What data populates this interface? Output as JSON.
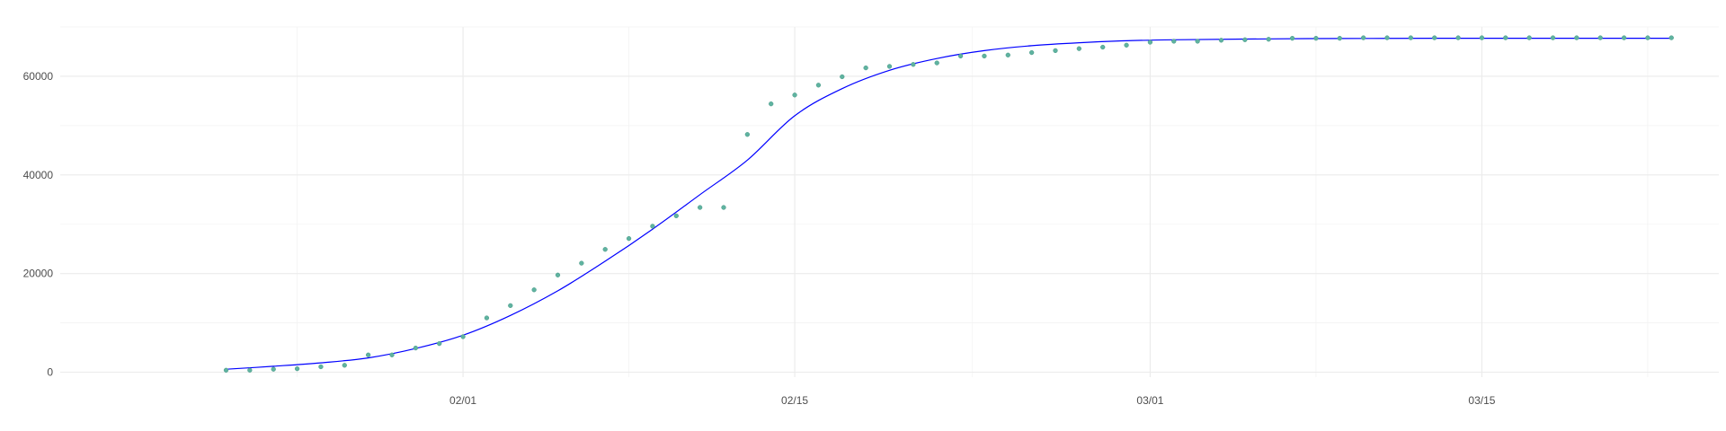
{
  "chart_data": {
    "type": "scatter",
    "title": "",
    "xlabel": "",
    "ylabel": "",
    "x_ticks": [
      "02/01",
      "02/15",
      "03/01",
      "03/15"
    ],
    "y_ticks": [
      0,
      20000,
      40000,
      60000
    ],
    "ylim": [
      -1000,
      70000
    ],
    "xlim": [
      "2020-01-15",
      "2020-03-25"
    ],
    "grid": true,
    "legend": "none",
    "series": [
      {
        "kind": "points",
        "color": "#5fb3a0",
        "dates": [
          "2020-01-22",
          "2020-01-23",
          "2020-01-24",
          "2020-01-25",
          "2020-01-26",
          "2020-01-27",
          "2020-01-28",
          "2020-01-29",
          "2020-01-30",
          "2020-01-31",
          "2020-02-01",
          "2020-02-02",
          "2020-02-03",
          "2020-02-04",
          "2020-02-05",
          "2020-02-06",
          "2020-02-07",
          "2020-02-08",
          "2020-02-09",
          "2020-02-10",
          "2020-02-11",
          "2020-02-12",
          "2020-02-13",
          "2020-02-14",
          "2020-02-15",
          "2020-02-16",
          "2020-02-17",
          "2020-02-18",
          "2020-02-19",
          "2020-02-20",
          "2020-02-21",
          "2020-02-22",
          "2020-02-23",
          "2020-02-24",
          "2020-02-25",
          "2020-02-26",
          "2020-02-27",
          "2020-02-28",
          "2020-02-29",
          "2020-03-01",
          "2020-03-02",
          "2020-03-03",
          "2020-03-04",
          "2020-03-05",
          "2020-03-06",
          "2020-03-07",
          "2020-03-08",
          "2020-03-09",
          "2020-03-10",
          "2020-03-11",
          "2020-03-12",
          "2020-03-13",
          "2020-03-14",
          "2020-03-15",
          "2020-03-16",
          "2020-03-17",
          "2020-03-18",
          "2020-03-19",
          "2020-03-20",
          "2020-03-21",
          "2020-03-22",
          "2020-03-23"
        ],
        "values": [
          400,
          400,
          600,
          700,
          1100,
          1400,
          3500,
          3500,
          4900,
          5800,
          7200,
          11000,
          13500,
          16700,
          19700,
          22100,
          24900,
          27100,
          29600,
          31700,
          33400,
          33400,
          48200,
          54400,
          56200,
          58200,
          59900,
          61700,
          62000,
          62400,
          62700,
          64100,
          64100,
          64300,
          64800,
          65200,
          65600,
          65900,
          66300,
          66900,
          67100,
          67100,
          67300,
          67400,
          67500,
          67700,
          67700,
          67700,
          67800,
          67800,
          67800,
          67800,
          67800,
          67800,
          67800,
          67800,
          67800,
          67800,
          67800,
          67800,
          67800,
          67800
        ]
      },
      {
        "kind": "fitted-curve",
        "color": "#0000ff",
        "dates": [
          "2020-01-22",
          "2020-01-24",
          "2020-01-26",
          "2020-01-28",
          "2020-01-30",
          "2020-02-01",
          "2020-02-03",
          "2020-02-05",
          "2020-02-07",
          "2020-02-09",
          "2020-02-11",
          "2020-02-13",
          "2020-02-15",
          "2020-02-17",
          "2020-02-19",
          "2020-02-21",
          "2020-02-23",
          "2020-02-25",
          "2020-02-27",
          "2020-02-29",
          "2020-03-02",
          "2020-03-05",
          "2020-03-09",
          "2020-03-13",
          "2020-03-17",
          "2020-03-23"
        ],
        "values": [
          600,
          1200,
          1900,
          2900,
          4800,
          7500,
          11500,
          16500,
          22500,
          29000,
          36000,
          43000,
          52000,
          57500,
          61200,
          63600,
          65200,
          66200,
          66800,
          67200,
          67400,
          67550,
          67650,
          67700,
          67700,
          67700
        ]
      }
    ]
  }
}
